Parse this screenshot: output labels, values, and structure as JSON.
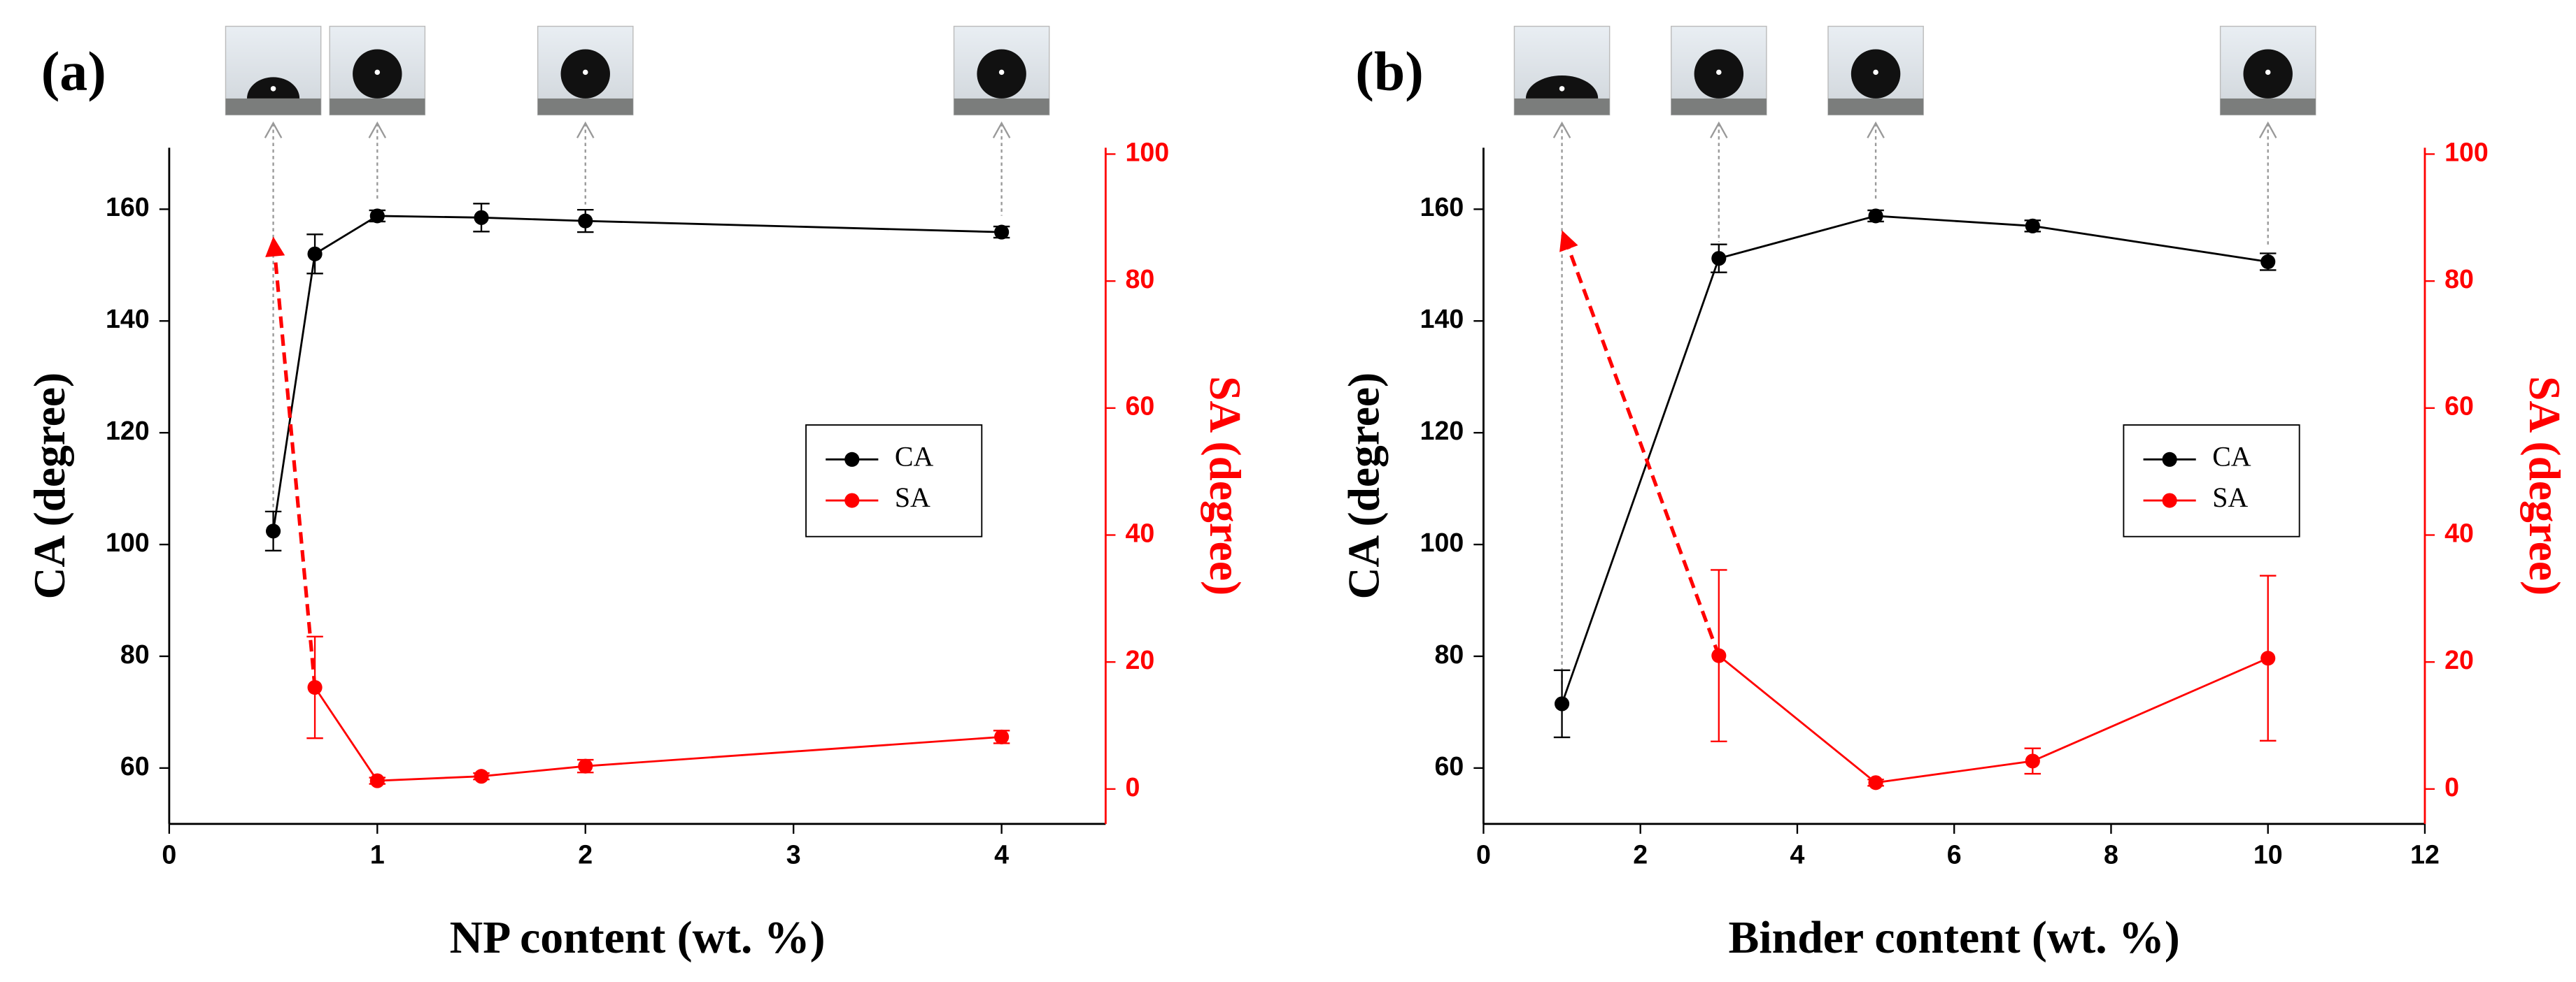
{
  "chart_data": [
    {
      "type": "line",
      "panel_label": "(a)",
      "xlabel": "NP content (wt. %)",
      "ylabel": "CA (degree)",
      "y2label": "SA (degree)",
      "xlim": [
        0,
        4.5
      ],
      "xticks": [
        0,
        1,
        2,
        3,
        4
      ],
      "ylim": [
        50,
        171
      ],
      "yticks": [
        60,
        80,
        100,
        120,
        140,
        160
      ],
      "y2lim": [
        -5.5,
        101
      ],
      "y2ticks": [
        0,
        20,
        40,
        60,
        80,
        100
      ],
      "legend": "center right",
      "series": [
        {
          "name": "CA",
          "color": "#000000",
          "x": [
            0.5,
            0.7,
            1,
            1.5,
            2,
            4
          ],
          "values": [
            102.4,
            152,
            158.8,
            158.5,
            157.9,
            155.9
          ],
          "errors": [
            3.5,
            3.5,
            1,
            2.5,
            2,
            1
          ]
        },
        {
          "name": "SA",
          "color": "#ff0000",
          "axis": "y2",
          "x": [
            0.7,
            1,
            1.5,
            2,
            4
          ],
          "values": [
            16,
            1.3,
            2,
            3.6,
            8.2
          ],
          "errors": [
            8,
            0.5,
            0.5,
            1,
            1
          ]
        }
      ],
      "sa_arrow": {
        "x": 0.5,
        "value": 87
      },
      "image_x": [
        0.5,
        1,
        2,
        4
      ]
    },
    {
      "type": "line",
      "panel_label": "(b)",
      "xlabel": "Binder content (wt. %)",
      "ylabel": "CA (degree)",
      "y2label": "SA (degree)",
      "xlim": [
        0,
        12
      ],
      "xticks": [
        0,
        2,
        4,
        6,
        8,
        10,
        12
      ],
      "ylim": [
        50,
        171
      ],
      "yticks": [
        60,
        80,
        100,
        120,
        140,
        160
      ],
      "y2lim": [
        -5.5,
        101
      ],
      "y2ticks": [
        0,
        20,
        40,
        60,
        80,
        100
      ],
      "legend": "center right",
      "series": [
        {
          "name": "CA",
          "color": "#000000",
          "x": [
            1,
            3,
            5,
            7,
            10
          ],
          "values": [
            71.5,
            151.2,
            158.8,
            157,
            150.6
          ],
          "errors": [
            6,
            2.5,
            1,
            1,
            1.5
          ]
        },
        {
          "name": "SA",
          "color": "#ff0000",
          "axis": "y2",
          "x": [
            3,
            5,
            7,
            10
          ],
          "values": [
            21,
            1,
            4.4,
            20.6
          ],
          "errors": [
            13.5,
            0.5,
            2,
            13
          ]
        }
      ],
      "sa_arrow": {
        "x": 1,
        "value": 88
      },
      "image_x": [
        1,
        3,
        5,
        10
      ]
    }
  ]
}
